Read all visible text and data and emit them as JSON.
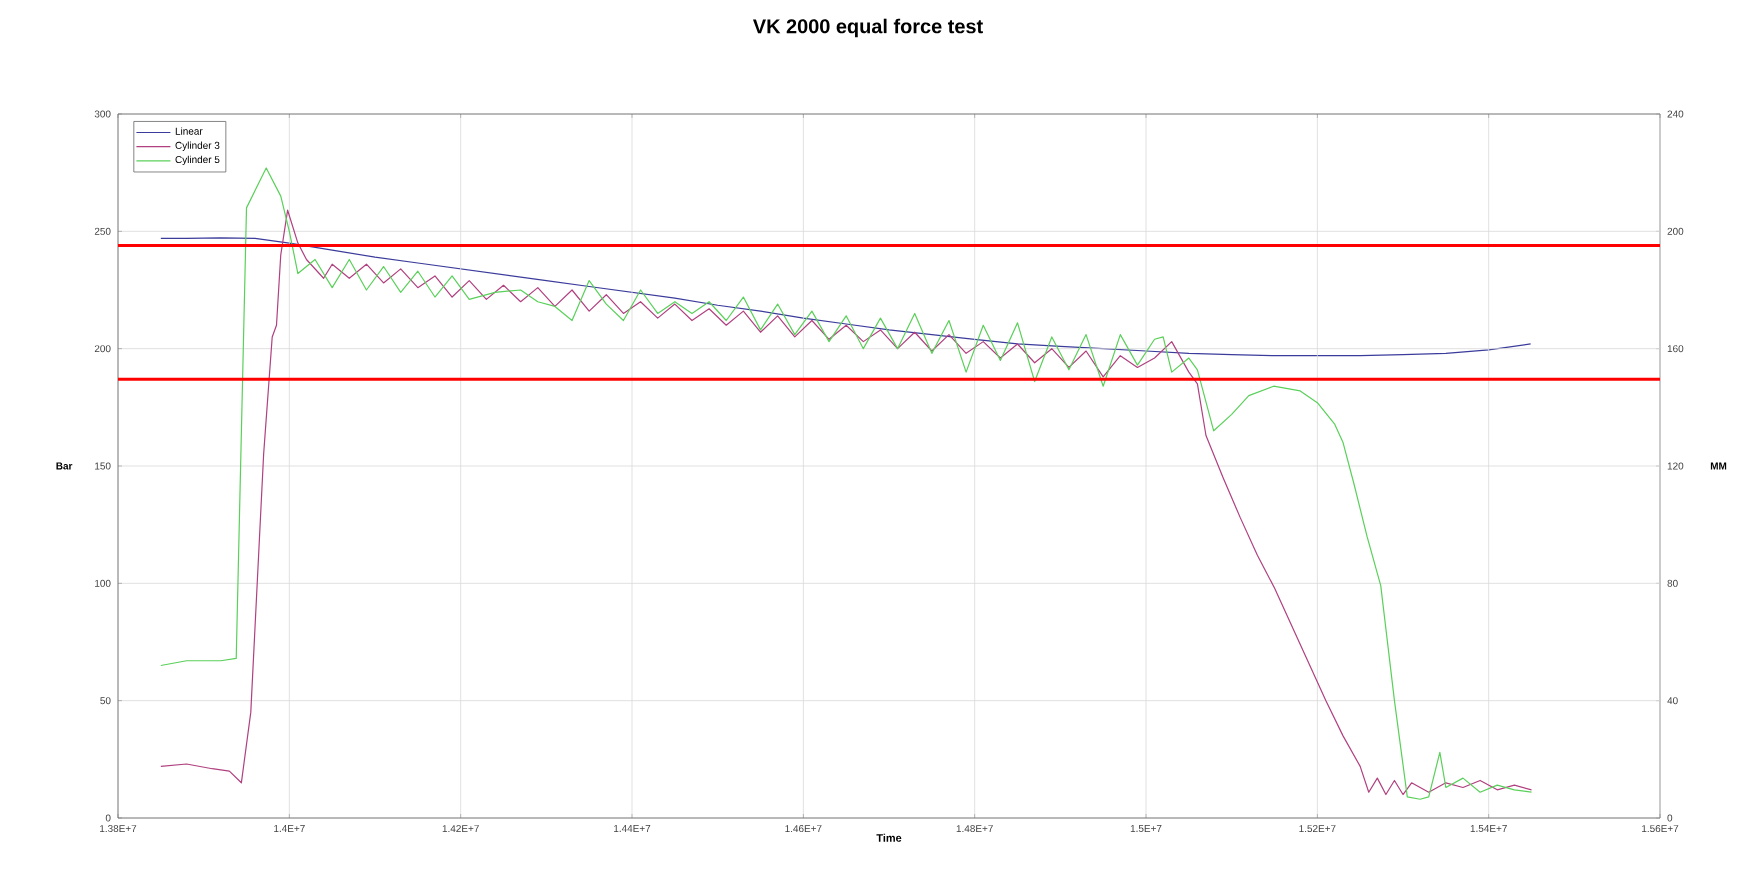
{
  "chart_data": {
    "type": "line",
    "title": "VK 2000 equal force test",
    "xlabel": "Time",
    "ylabel": "Bar",
    "y2label": "MM",
    "xlim": [
      13800000,
      15600000
    ],
    "xticks": [
      {
        "value": 13800000,
        "label": "1.38E+7"
      },
      {
        "value": 14000000,
        "label": "1.4E+7"
      },
      {
        "value": 14200000,
        "label": "1.42E+7"
      },
      {
        "value": 14400000,
        "label": "1.44E+7"
      },
      {
        "value": 14600000,
        "label": "1.46E+7"
      },
      {
        "value": 14800000,
        "label": "1.48E+7"
      },
      {
        "value": 15000000,
        "label": "1.5E+7"
      },
      {
        "value": 15200000,
        "label": "1.52E+7"
      },
      {
        "value": 15400000,
        "label": "1.54E+7"
      },
      {
        "value": 15600000,
        "label": "1.56E+7"
      }
    ],
    "ylim": [
      0,
      300
    ],
    "yticks": [
      0,
      50,
      100,
      150,
      200,
      250,
      300
    ],
    "y2lim": [
      0,
      240
    ],
    "y2ticks": [
      0,
      40,
      80,
      120,
      160,
      200,
      240
    ],
    "grid": true,
    "legend": "top left",
    "marker": "none",
    "line_style": "solid",
    "ref_lines": [
      {
        "axis": "y",
        "value": 244,
        "color": "#ff0000"
      },
      {
        "axis": "y",
        "value": 187,
        "color": "#ff0000"
      }
    ],
    "series": [
      {
        "name": "Linear",
        "color": "#3b3b9c",
        "axis": "y2",
        "x": [
          13850000,
          13880000,
          13920000,
          13960000,
          13980000,
          14000000,
          14050000,
          14100000,
          14150000,
          14200000,
          14250000,
          14300000,
          14350000,
          14400000,
          14450000,
          14500000,
          14550000,
          14600000,
          14650000,
          14700000,
          14750000,
          14800000,
          14850000,
          14900000,
          14950000,
          15000000,
          15050000,
          15100000,
          15150000,
          15200000,
          15250000,
          15300000,
          15350000,
          15400000,
          15449000
        ],
        "values": [
          197.6,
          197.6,
          197.8,
          197.6,
          196.8,
          196.0,
          193.6,
          191.2,
          189.2,
          187.2,
          185.2,
          183.2,
          181.2,
          179.2,
          177.2,
          174.8,
          172.8,
          170.4,
          168.4,
          166.4,
          164.8,
          163.2,
          161.6,
          160.8,
          160.0,
          159.2,
          158.4,
          158.0,
          157.6,
          157.6,
          157.6,
          158.0,
          158.4,
          159.6,
          161.6
        ]
      },
      {
        "name": "Cylinder 3",
        "color": "#b0407f",
        "x": [
          13850000,
          13880000,
          13910000,
          13930000,
          13944000,
          13955000,
          13970000,
          13980000,
          13985000,
          13990000,
          13998000,
          14010000,
          14020000,
          14040000,
          14050000,
          14070000,
          14090000,
          14110000,
          14130000,
          14150000,
          14170000,
          14190000,
          14210000,
          14230000,
          14250000,
          14270000,
          14290000,
          14310000,
          14330000,
          14350000,
          14370000,
          14390000,
          14410000,
          14430000,
          14450000,
          14470000,
          14490000,
          14510000,
          14530000,
          14550000,
          14570000,
          14590000,
          14610000,
          14630000,
          14650000,
          14670000,
          14690000,
          14710000,
          14730000,
          14750000,
          14770000,
          14790000,
          14810000,
          14830000,
          14850000,
          14870000,
          14890000,
          14910000,
          14930000,
          14950000,
          14970000,
          14990000,
          15010000,
          15030000,
          15050000,
          15060000,
          15070000,
          15090000,
          15110000,
          15130000,
          15150000,
          15170000,
          15190000,
          15210000,
          15230000,
          15250000,
          15260000,
          15270000,
          15280000,
          15290000,
          15300000,
          15310000,
          15330000,
          15350000,
          15370000,
          15390000,
          15410000,
          15430000,
          15450000
        ],
        "values": [
          22,
          23,
          21,
          20,
          15,
          45,
          155,
          205,
          210,
          240,
          259,
          245,
          238,
          230,
          236,
          230,
          236,
          228,
          234,
          226,
          231,
          222,
          229,
          221,
          227,
          220,
          226,
          218,
          225,
          216,
          223,
          215,
          220,
          213,
          219,
          212,
          217,
          210,
          216,
          207,
          214,
          205,
          212,
          204,
          210,
          203,
          208,
          200,
          207,
          199,
          206,
          198,
          203,
          196,
          202,
          194,
          200,
          192,
          199,
          188,
          197,
          192,
          196,
          203,
          190,
          185,
          163,
          145,
          128,
          112,
          98,
          82,
          66,
          50,
          35,
          22,
          11,
          17,
          10,
          16,
          10,
          15,
          11,
          15,
          13,
          16,
          12,
          14,
          12
        ]
      },
      {
        "name": "Cylinder 5",
        "color": "#5ad05a",
        "x": [
          13850000,
          13880000,
          13920000,
          13938000,
          13945000,
          13950000,
          13973000,
          13990000,
          14000000,
          14010000,
          14020000,
          14030000,
          14050000,
          14070000,
          14090000,
          14110000,
          14130000,
          14150000,
          14170000,
          14190000,
          14210000,
          14240000,
          14270000,
          14290000,
          14310000,
          14330000,
          14350000,
          14370000,
          14390000,
          14410000,
          14430000,
          14450000,
          14470000,
          14490000,
          14510000,
          14530000,
          14550000,
          14570000,
          14590000,
          14610000,
          14630000,
          14650000,
          14670000,
          14690000,
          14710000,
          14730000,
          14750000,
          14770000,
          14790000,
          14810000,
          14830000,
          14850000,
          14870000,
          14890000,
          14910000,
          14930000,
          14950000,
          14970000,
          14990000,
          15010000,
          15020000,
          15030000,
          15050000,
          15060000,
          15079000,
          15100000,
          15120000,
          15149000,
          15180000,
          15200000,
          15220000,
          15230000,
          15243000,
          15258000,
          15274000,
          15290000,
          15305000,
          15320000,
          15330000,
          15343000,
          15350000,
          15370000,
          15390000,
          15410000,
          15430000,
          15450000
        ],
        "values": [
          65,
          67,
          67,
          68,
          180,
          260,
          277,
          265,
          250,
          232,
          235,
          238,
          226,
          238,
          225,
          235,
          224,
          233,
          222,
          231,
          221,
          224,
          225,
          220,
          218,
          212,
          229,
          219,
          212,
          225,
          215,
          220,
          215,
          220,
          212,
          222,
          208,
          219,
          206,
          216,
          203,
          214,
          200,
          213,
          200,
          215,
          198,
          212,
          190,
          210,
          195,
          211,
          186,
          205,
          191,
          206,
          184,
          206,
          193,
          204,
          205,
          190,
          196,
          191,
          165,
          172,
          180,
          184,
          182,
          177,
          168,
          160,
          142,
          120,
          99,
          50,
          9,
          8,
          9,
          28,
          13,
          17,
          11,
          14,
          12,
          11
        ]
      }
    ]
  }
}
